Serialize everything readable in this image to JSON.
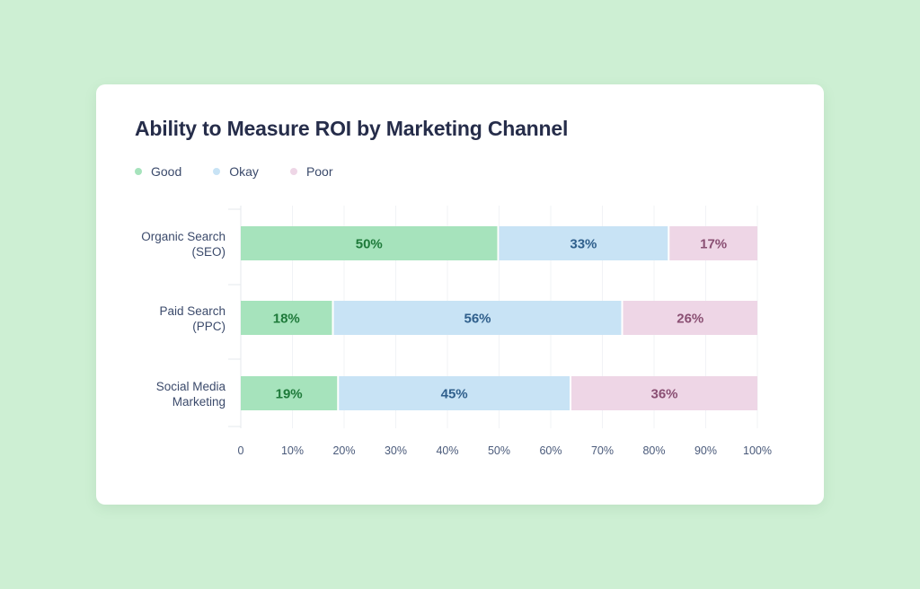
{
  "chart_data": {
    "type": "bar",
    "orientation": "horizontal",
    "stacked": true,
    "title": "Ability to Measure ROI by Marketing Channel",
    "categories": [
      [
        "Organic Search",
        "(SEO)"
      ],
      [
        "Paid Search",
        "(PPC)"
      ],
      [
        "Social Media",
        "Marketing"
      ]
    ],
    "series": [
      {
        "name": "Good",
        "key": "good",
        "color": "#a6e3bc",
        "text_color": "#1e7a3a",
        "values": [
          50,
          18,
          19
        ],
        "labels": [
          "50%",
          "18%",
          "19%"
        ]
      },
      {
        "name": "Okay",
        "key": "okay",
        "color": "#c8e3f5",
        "text_color": "#2f5f8c",
        "values": [
          33,
          56,
          45
        ],
        "labels": [
          "33%",
          "56%",
          "45%"
        ]
      },
      {
        "name": "Poor",
        "key": "poor",
        "color": "#eed6e6",
        "text_color": "#8a4f73",
        "values": [
          17,
          26,
          36
        ],
        "labels": [
          "17%",
          "26%",
          "36%"
        ]
      }
    ],
    "xlim": [
      0,
      100
    ],
    "xticks": [
      0,
      10,
      20,
      30,
      40,
      50,
      60,
      70,
      80,
      90,
      100
    ],
    "xtick_labels": [
      "0",
      "10%",
      "20%",
      "30%",
      "40%",
      "50%",
      "60%",
      "70%",
      "80%",
      "90%",
      "100%"
    ],
    "grid": true,
    "legend_position": "top-left"
  }
}
